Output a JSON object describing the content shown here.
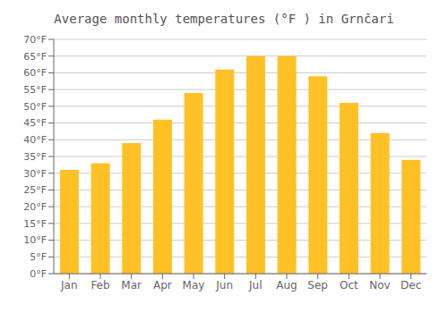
{
  "chart_data": {
    "type": "bar",
    "title": "Average monthly temperatures (°F ) in Grnčari",
    "categories": [
      "Jan",
      "Feb",
      "Mar",
      "Apr",
      "May",
      "Jun",
      "Jul",
      "Aug",
      "Sep",
      "Oct",
      "Nov",
      "Dec"
    ],
    "values": [
      31,
      33,
      39,
      46,
      54,
      61,
      65,
      65,
      59,
      51,
      42,
      34
    ],
    "color": "#FFC125",
    "ylim": [
      0,
      70
    ],
    "yticks": [
      {
        "value": 0,
        "label": "0°F"
      },
      {
        "value": 5,
        "label": "5°F"
      },
      {
        "value": 10,
        "label": "10°F"
      },
      {
        "value": 15,
        "label": "15°F"
      },
      {
        "value": 20,
        "label": "20°F"
      },
      {
        "value": 25,
        "label": "25°F"
      },
      {
        "value": 30,
        "label": "30°F"
      },
      {
        "value": 35,
        "label": "35°F"
      },
      {
        "value": 40,
        "label": "40°F"
      },
      {
        "value": 45,
        "label": "45°F"
      },
      {
        "value": 50,
        "label": "50°F"
      },
      {
        "value": 55,
        "label": "55°F"
      },
      {
        "value": 60,
        "label": "60°F"
      },
      {
        "value": 65,
        "label": "65°F"
      },
      {
        "value": 70,
        "label": "70°F"
      }
    ],
    "grid": true
  }
}
